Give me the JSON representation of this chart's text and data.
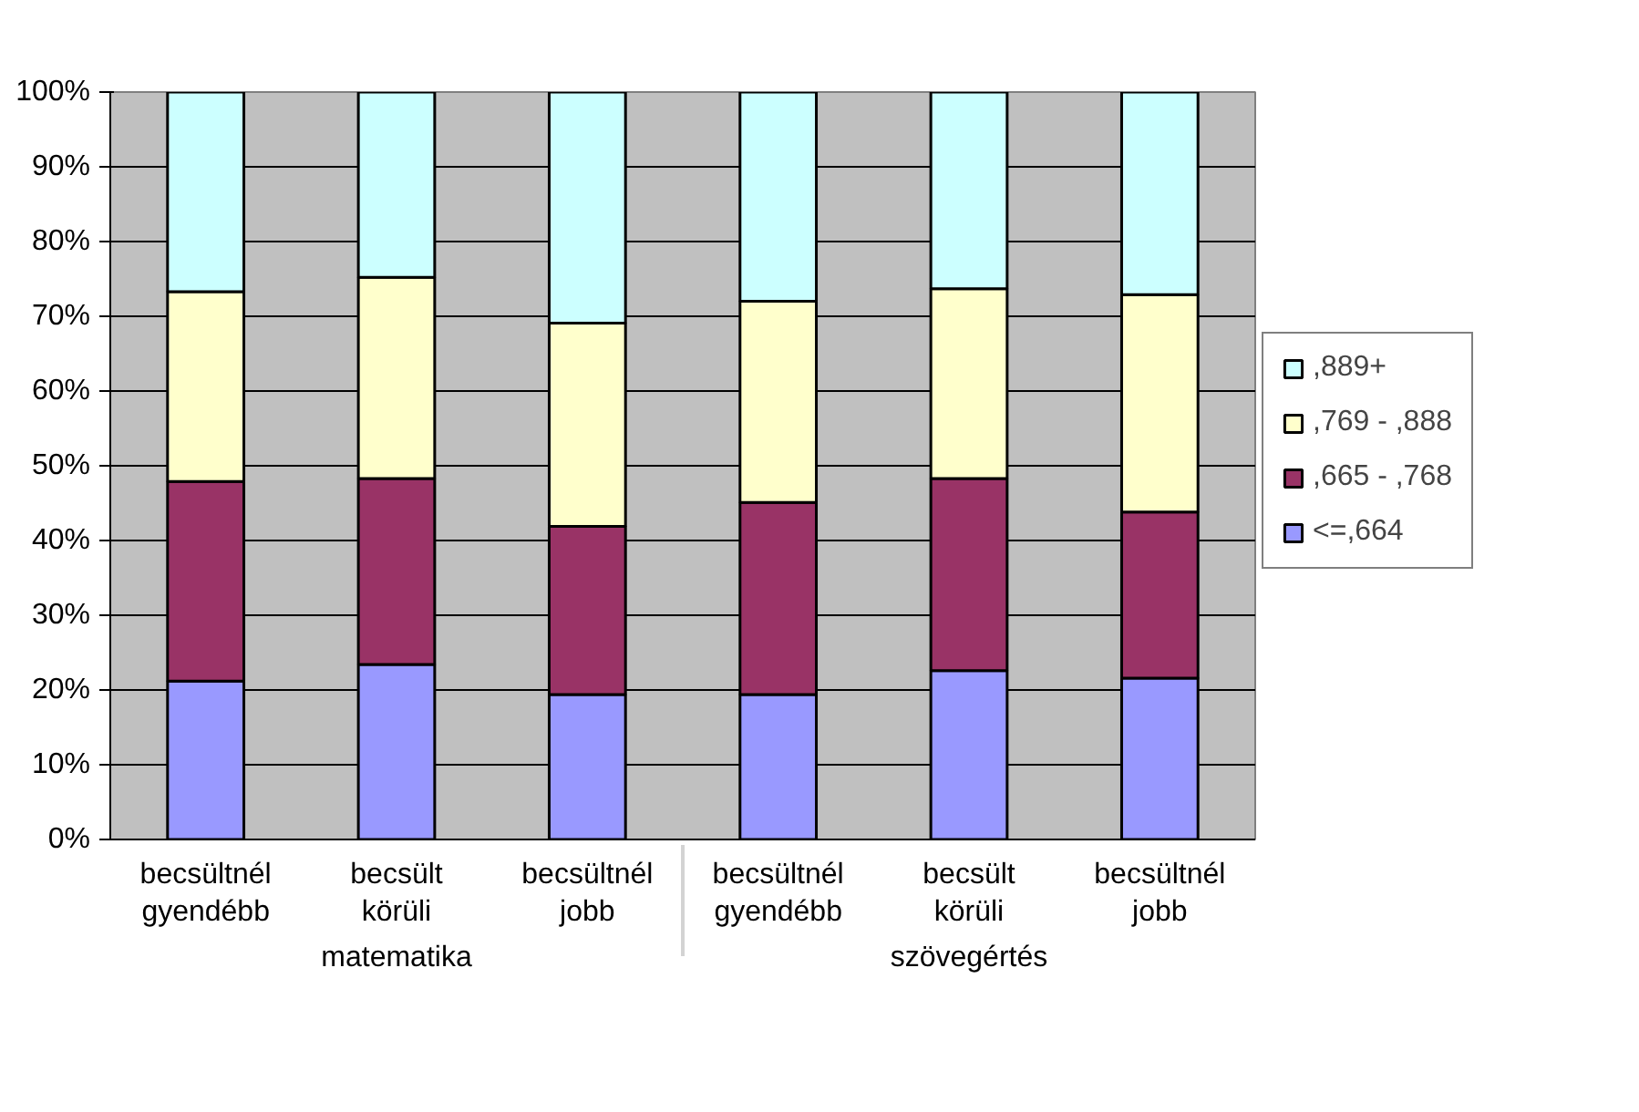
{
  "chart_data": {
    "type": "bar",
    "stacked": true,
    "categories": [
      "becsültnél gyendébb",
      "becsült körüli",
      "becsültnél jobb",
      "becsültnél gyendébb",
      "becsült körüli",
      "becsültnél jobb"
    ],
    "series": [
      {
        "name": "<=,664",
        "color": "#9999ff",
        "values": [
          21.2,
          23.4,
          19.4,
          19.4,
          22.6,
          21.6
        ]
      },
      {
        "name": ",665 - ,768",
        "color": "#993366",
        "values": [
          26.7,
          24.9,
          22.5,
          25.7,
          25.7,
          22.2
        ]
      },
      {
        "name": ",769 - ,888",
        "color": "#ffffcc",
        "values": [
          25.4,
          26.9,
          27.2,
          26.9,
          25.4,
          29.1
        ]
      },
      {
        "name": ",889+",
        "color": "#ccffff",
        "values": [
          26.7,
          24.8,
          30.9,
          28.0,
          26.3,
          27.1
        ]
      }
    ],
    "ylim": [
      0,
      100
    ],
    "yticks": [
      {
        "value": 0,
        "label": "0%"
      },
      {
        "value": 10,
        "label": "10%"
      },
      {
        "value": 20,
        "label": "20%"
      },
      {
        "value": 30,
        "label": "30%"
      },
      {
        "value": 40,
        "label": "40%"
      },
      {
        "value": 50,
        "label": "50%"
      },
      {
        "value": 60,
        "label": "60%"
      },
      {
        "value": 70,
        "label": "70%"
      },
      {
        "value": 80,
        "label": "80%"
      },
      {
        "value": 90,
        "label": "90%"
      },
      {
        "value": 100,
        "label": "100%"
      }
    ],
    "grid": "y",
    "legend": "right",
    "annotations": [
      "matematika",
      "szövegértés"
    ]
  }
}
